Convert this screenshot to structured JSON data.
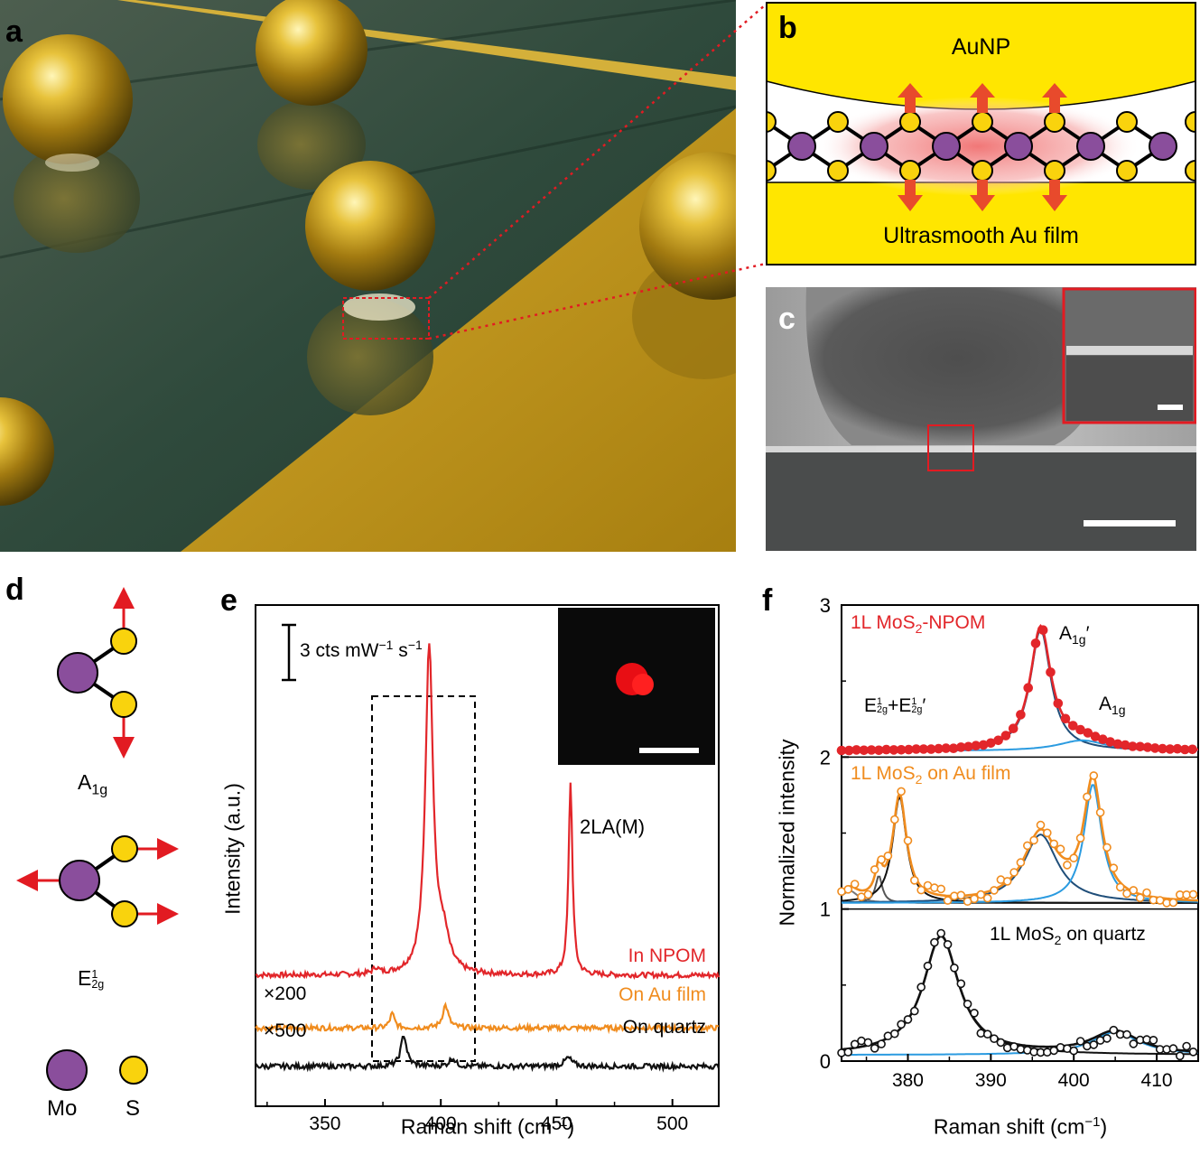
{
  "figure": {
    "panel_labels": {
      "a": "a",
      "b": "b",
      "c": "c",
      "d": "d",
      "e": "e",
      "f": "f"
    }
  },
  "panel_b": {
    "top_label": "AuNP",
    "bottom_label": "Ultrasmooth Au film"
  },
  "panel_d": {
    "mode1": {
      "main": "A",
      "sub": "1g"
    },
    "mode2": {
      "main": "E",
      "sup": "1",
      "sub": "2g"
    },
    "legend_mo": "Mo",
    "legend_s": "S"
  },
  "panel_e": {
    "scale_bar_label": "3 cts mW",
    "scale_bar_sup1": "−1",
    "scale_bar_mid": " s",
    "scale_bar_sup2": "−1",
    "annotation_2la": "2LA(M)",
    "factor_au": "×200",
    "factor_quartz": "×500",
    "colors": {
      "npom": "#e2262a",
      "au": "#f08c1e",
      "quartz": "#111111"
    }
  },
  "panel_f": {
    "label_npom_pre": "1L MoS",
    "label_npom_sub": "2",
    "label_npom_post": "-NPOM",
    "label_au_pre": "1L MoS",
    "label_au_sub": "2",
    "label_au_post": " on Au film",
    "label_quartz_pre": "1L MoS",
    "label_quartz_sub": "2",
    "label_quartz_post": " on quartz",
    "peak_a1g_prime": {
      "main": "A",
      "sub": "1g",
      "post": "′"
    },
    "peak_a1g": {
      "main": "A",
      "sub": "1g"
    },
    "peak_e2g": {
      "main1": "E",
      "sup1": "1",
      "sub1": "2g",
      "plus": "+E",
      "sup2": "1",
      "sub2": "2g",
      "post": "′"
    }
  },
  "chart_data": [
    {
      "type": "line",
      "panel": "e",
      "title": "",
      "xlabel": "Raman shift (cm−1)",
      "ylabel": "Intensity (a.u.)",
      "xlim": [
        320,
        520
      ],
      "xticks": [
        350,
        400,
        450,
        500
      ],
      "series": [
        {
          "name": "In NPOM",
          "color": "#e2262a",
          "baseline": 0,
          "peaks": [
            {
              "x": 372,
              "h": 0.2,
              "w": 1.5
            },
            {
              "x": 395,
              "h": 11.5,
              "w": 2.0
            },
            {
              "x": 401,
              "h": 1.2,
              "w": 3.0
            },
            {
              "x": 456,
              "h": 6.8,
              "w": 1.0
            }
          ]
        },
        {
          "name": "On Au film",
          "color": "#f08c1e",
          "baseline": -1.85,
          "peaks": [
            {
              "x": 379,
              "h": 0.5,
              "w": 1.2
            },
            {
              "x": 402,
              "h": 0.8,
              "w": 1.5
            }
          ]
        },
        {
          "name": "On quartz",
          "color": "#111111",
          "baseline": -3.2,
          "peaks": [
            {
              "x": 384,
              "h": 1.1,
              "w": 1.5
            },
            {
              "x": 405,
              "h": 0.3,
              "w": 1.5
            },
            {
              "x": 455,
              "h": 0.3,
              "w": 2.0
            }
          ]
        }
      ],
      "xaxis_ticklabels": [
        "350",
        "400",
        "450",
        "500"
      ]
    },
    {
      "type": "scatter",
      "panel": "f",
      "title": "",
      "xlabel": "Raman shift (cm−1)",
      "ylabel": "Normalized intensity",
      "xlim": [
        372,
        415
      ],
      "ylim": [
        0,
        3
      ],
      "xticks": [
        380,
        390,
        400,
        410
      ],
      "yticks": [
        0,
        1,
        2,
        3
      ],
      "series": [
        {
          "name": "1L MoS2-NPOM",
          "color": "#e2262a",
          "offset": 2.0,
          "components": [
            {
              "x0": 396.0,
              "a": 0.8,
              "g": 1.5,
              "color": "#1f4e79"
            },
            {
              "x0": 401.0,
              "a": 0.07,
              "g": 3.5,
              "color": "#2b9be0"
            }
          ]
        },
        {
          "name": "1L MoS2 on Au film",
          "color": "#f08c1e",
          "offset": 1.0,
          "components": [
            {
              "x0": 373.0,
              "a": 0.08,
              "g": 1.2,
              "color": "#777777"
            },
            {
              "x0": 376.5,
              "a": 0.18,
              "g": 0.5,
              "color": "#555555"
            },
            {
              "x0": 379.0,
              "a": 0.7,
              "g": 1.0,
              "color": "#111111"
            },
            {
              "x0": 396.0,
              "a": 0.45,
              "g": 2.5,
              "color": "#1f4e79"
            },
            {
              "x0": 402.3,
              "a": 0.78,
              "g": 1.3,
              "color": "#2b9be0"
            }
          ]
        },
        {
          "name": "1L MoS2 on quartz",
          "color": "#111111",
          "offset": 0.0,
          "components": [
            {
              "x0": 384.0,
              "a": 0.78,
              "g": 2.6,
              "color": "#111111"
            },
            {
              "x0": 405.0,
              "a": 0.15,
              "g": 3.5,
              "color": "#2b9be0"
            }
          ]
        }
      ],
      "xaxis_ticklabels": [
        "380",
        "390",
        "400",
        "410"
      ],
      "yaxis_ticklabels": [
        "0",
        "1",
        "2",
        "3"
      ]
    }
  ]
}
